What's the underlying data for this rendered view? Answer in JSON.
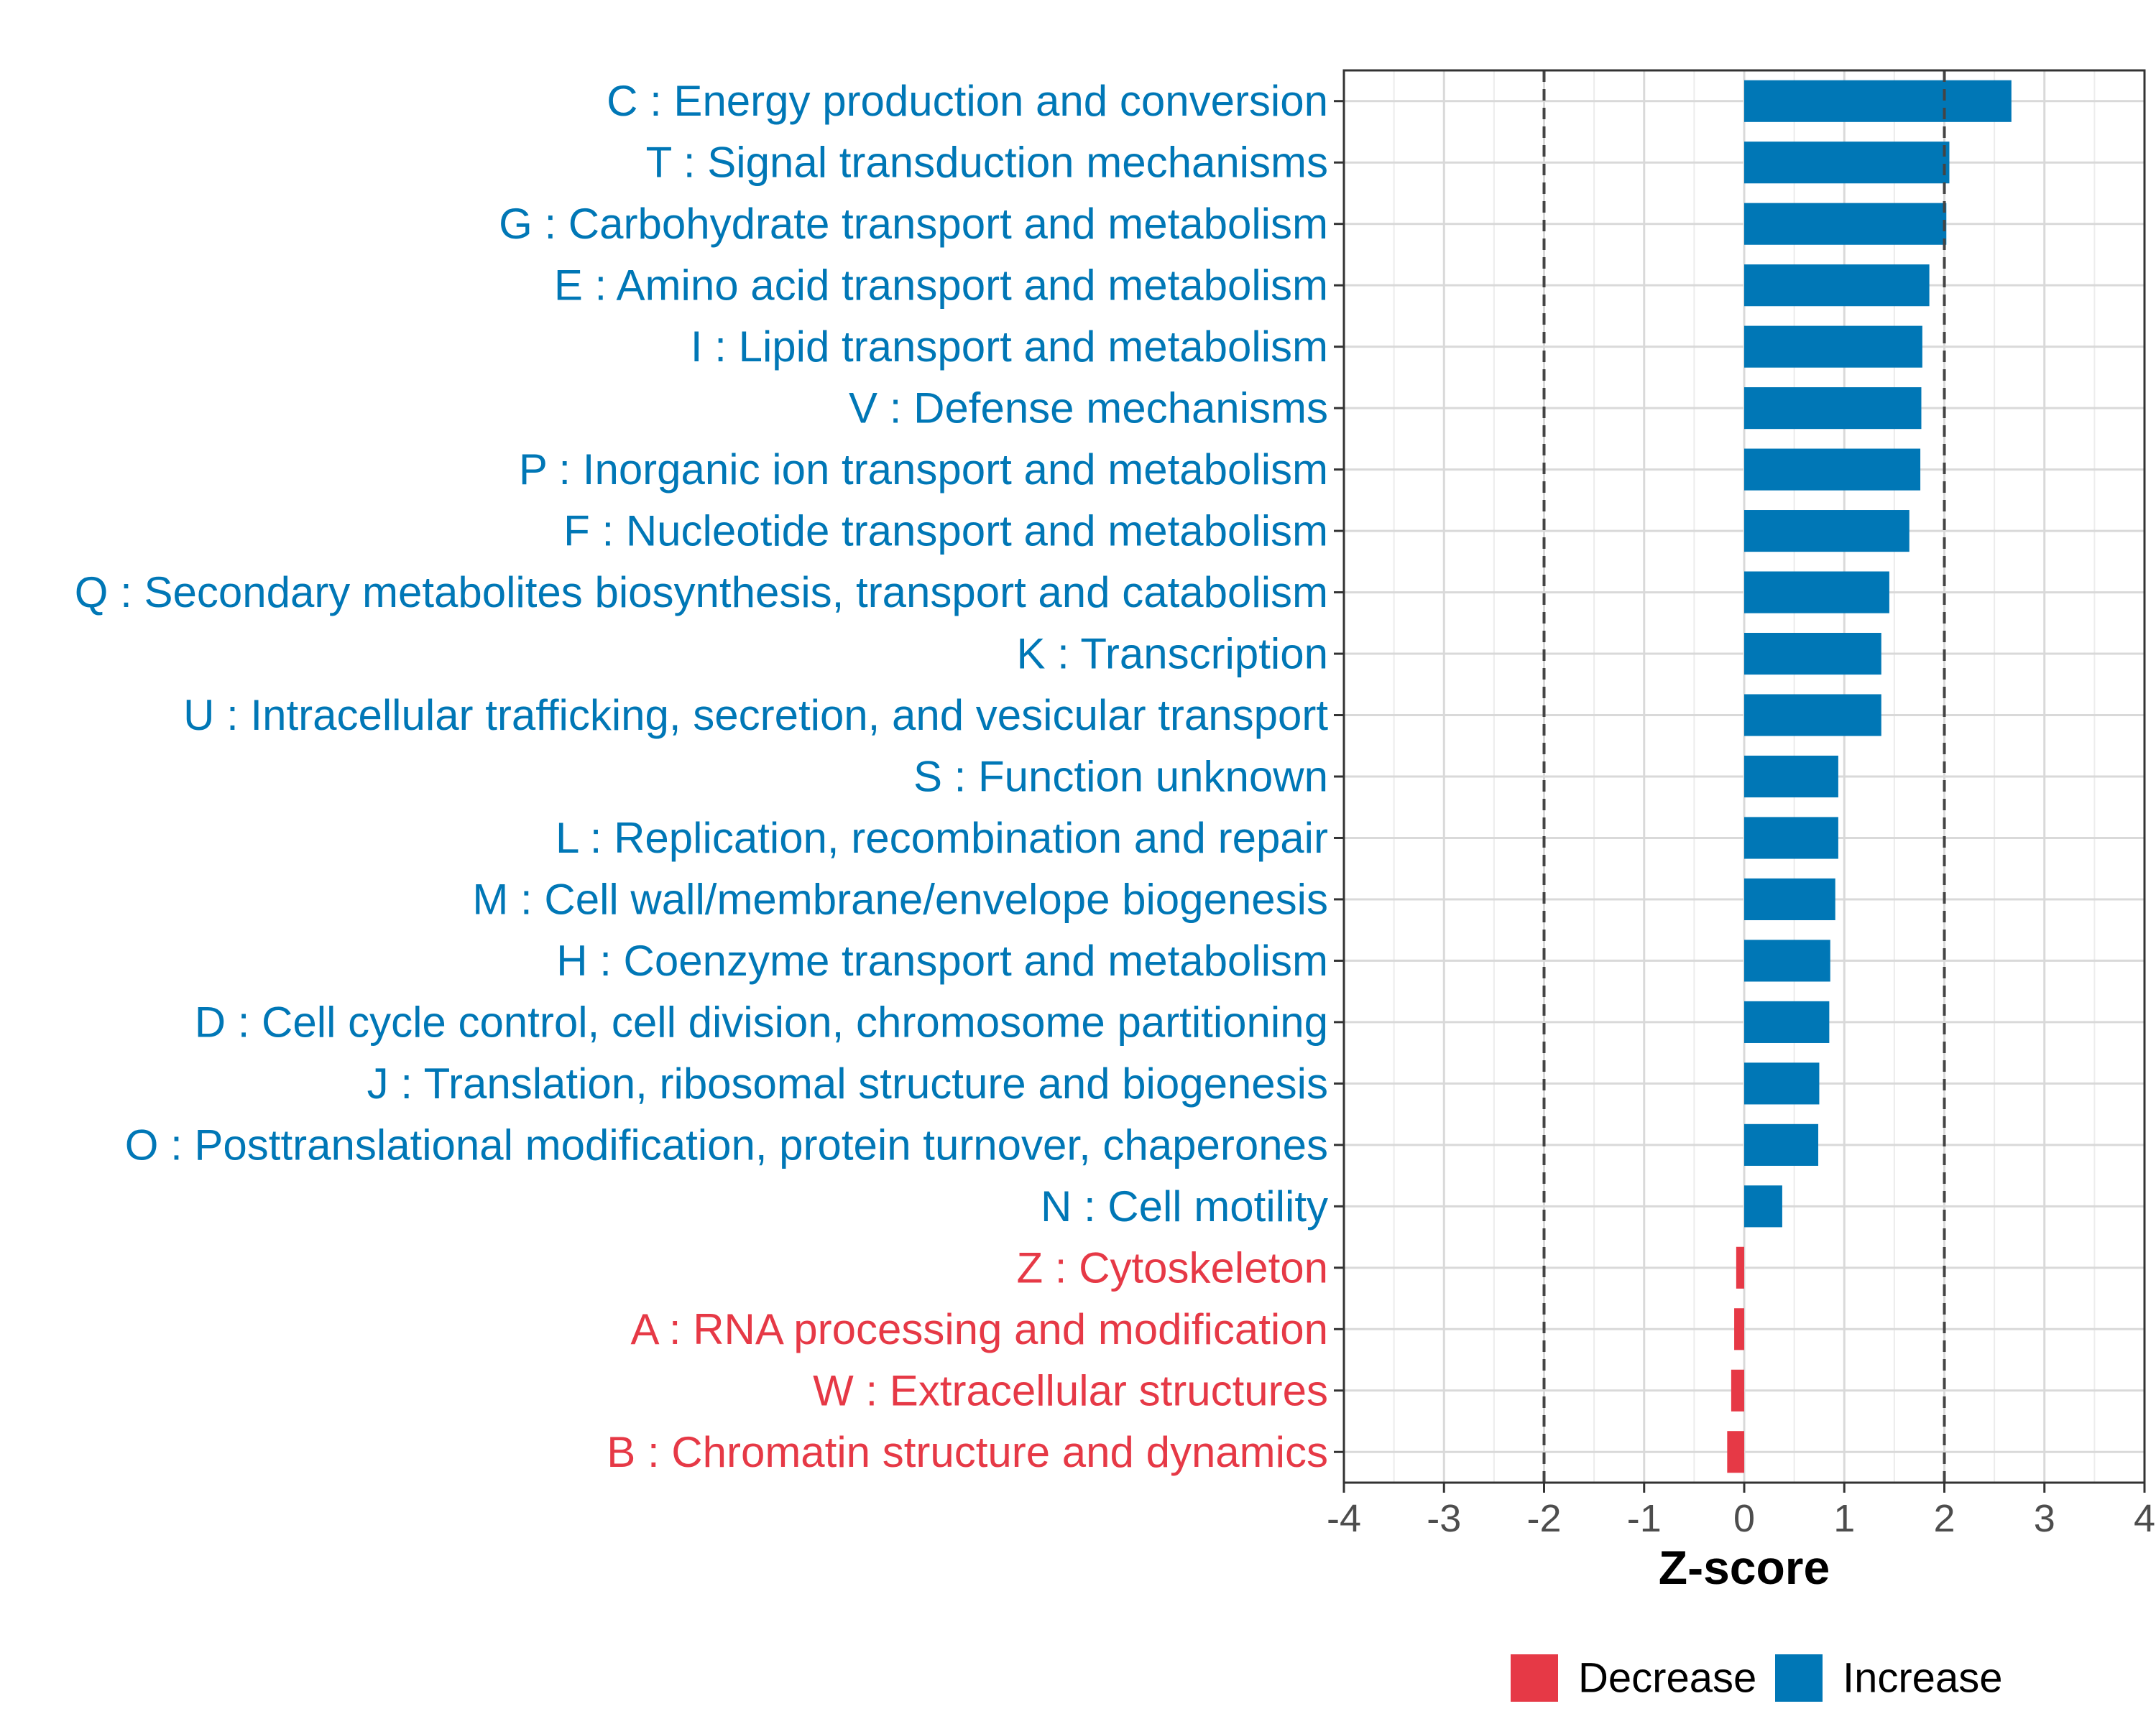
{
  "chart_data": {
    "type": "bar",
    "orientation": "horizontal",
    "xlabel": "Z-score",
    "ylabel": "",
    "xlim": [
      -4,
      4
    ],
    "xticks": [
      -4,
      -3,
      -2,
      -1,
      0,
      1,
      2,
      3,
      4
    ],
    "xtick_labels": [
      "-4",
      "-3",
      "-2",
      "-1",
      "0",
      "1",
      "2",
      "3",
      "4"
    ],
    "reference_lines": [
      -2,
      2
    ],
    "grid": true,
    "colors": {
      "Increase": "#0077b6",
      "Decrease": "#e63946"
    },
    "categories": [
      "C : Energy production and conversion",
      "T : Signal transduction mechanisms",
      "G : Carbohydrate transport and metabolism",
      "E : Amino acid transport and metabolism",
      "I : Lipid transport and metabolism",
      "V : Defense mechanisms",
      "P : Inorganic ion transport and metabolism",
      "F : Nucleotide transport and metabolism",
      "Q : Secondary metabolites biosynthesis, transport and catabolism",
      "K : Transcription",
      "U : Intracellular trafficking, secretion, and vesicular transport",
      "S : Function unknown",
      "L : Replication, recombination and repair",
      "M : Cell wall/membrane/envelope biogenesis",
      "H : Coenzyme transport and metabolism",
      "D : Cell cycle control, cell division, chromosome partitioning",
      "J : Translation, ribosomal structure and biogenesis",
      "O : Posttranslational modification, protein turnover, chaperones",
      "N : Cell motility",
      "Z : Cytoskeleton",
      "A : RNA processing and modification",
      "W : Extracellular structures",
      "B : Chromatin structure and dynamics"
    ],
    "values": [
      2.67,
      2.05,
      2.02,
      1.85,
      1.78,
      1.77,
      1.76,
      1.65,
      1.45,
      1.37,
      1.37,
      0.94,
      0.94,
      0.91,
      0.86,
      0.85,
      0.75,
      0.74,
      0.38,
      -0.08,
      -0.1,
      -0.13,
      -0.17
    ],
    "groups": [
      "Increase",
      "Increase",
      "Increase",
      "Increase",
      "Increase",
      "Increase",
      "Increase",
      "Increase",
      "Increase",
      "Increase",
      "Increase",
      "Increase",
      "Increase",
      "Increase",
      "Increase",
      "Increase",
      "Increase",
      "Increase",
      "Increase",
      "Decrease",
      "Decrease",
      "Decrease",
      "Decrease"
    ],
    "legend": {
      "position": "bottom",
      "entries": [
        "Decrease",
        "Increase"
      ]
    }
  }
}
